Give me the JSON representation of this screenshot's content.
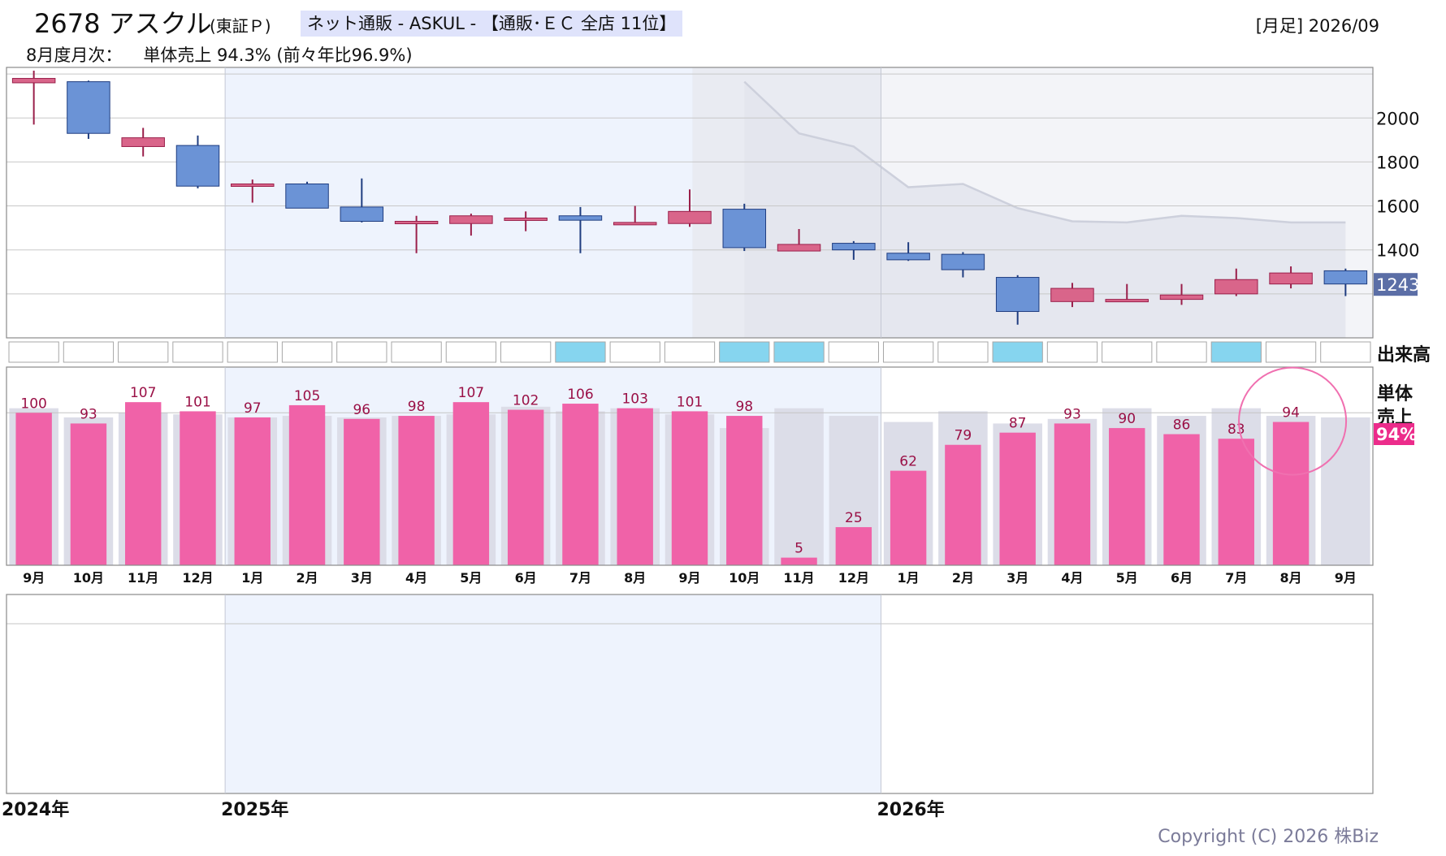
{
  "header": {
    "ticker": "2678 アスクル",
    "market": "(東証Ｐ)",
    "sector": "ネット通販 - ASKUL - 【通販･ＥＣ 全店 11位】",
    "period": "[月足] 2026/09",
    "monthly_label": "8月度月次：",
    "monthly_value": "単体売上 94.3% (前々年比96.9%)"
  },
  "footer": {
    "copyright": "Copyright (C) 2026 株Biz"
  },
  "colors": {
    "up_candle": "#d9658a",
    "down_candle": "#6b93d6",
    "up_wick": "#9a1f4a",
    "down_wick": "#1f3d80",
    "sales_bar": "#f062a8",
    "sales_label": "#9a1046",
    "comparison_bar": "#dcdde8",
    "highlight_band": "#eef3fd",
    "volume_highlight": "#86d5ef",
    "price_badge": "#5b6ea6",
    "sales_badge": "#ec2c8b",
    "circle": "#f070b0"
  },
  "chart_data": [
    {
      "type": "candlestick",
      "title": "",
      "x": [
        "2024-09",
        "2024-10",
        "2024-11",
        "2024-12",
        "2025-01",
        "2025-02",
        "2025-03",
        "2025-04",
        "2025-05",
        "2025-06",
        "2025-07",
        "2025-08",
        "2025-09",
        "2025-10",
        "2025-11",
        "2025-12",
        "2026-01",
        "2026-02",
        "2026-03",
        "2026-04",
        "2026-05",
        "2026-06",
        "2026-07",
        "2026-08",
        "2026-09"
      ],
      "open": [
        2160,
        2165,
        1870,
        1875,
        1695,
        1700,
        1595,
        1530,
        1520,
        1535,
        1555,
        1525,
        1520,
        1585,
        1395,
        1430,
        1385,
        1380,
        1275,
        1165,
        1175,
        1175,
        1200,
        1245,
        1305
      ],
      "close": [
        2180,
        1930,
        1910,
        1690,
        1700,
        1590,
        1530,
        1530,
        1555,
        1545,
        1535,
        1525,
        1575,
        1410,
        1425,
        1400,
        1355,
        1310,
        1120,
        1225,
        1175,
        1195,
        1265,
        1295,
        1245
      ],
      "high": [
        2215,
        2170,
        1955,
        1920,
        1720,
        1710,
        1725,
        1555,
        1565,
        1575,
        1595,
        1600,
        1675,
        1610,
        1495,
        1440,
        1435,
        1390,
        1285,
        1250,
        1245,
        1245,
        1315,
        1325,
        1315
      ],
      "low": [
        1970,
        1905,
        1825,
        1680,
        1615,
        1590,
        1525,
        1385,
        1465,
        1485,
        1385,
        1515,
        1505,
        1395,
        1395,
        1355,
        1350,
        1275,
        1060,
        1140,
        1165,
        1150,
        1190,
        1225,
        1190
      ],
      "moving_average": {
        "start_index": 13,
        "values": [
          2165,
          1930,
          1870,
          1685,
          1700,
          1590,
          1530,
          1525,
          1555,
          1545,
          1525,
          1525
        ]
      },
      "y_ticks": [
        1400,
        1600,
        1800,
        2000
      ],
      "ylim": [
        1000,
        2230
      ],
      "last_price": "1243",
      "grid": true
    },
    {
      "type": "volume_indicator",
      "label": "出来高",
      "highlighted_indices": [
        10,
        13,
        14,
        18,
        22
      ]
    },
    {
      "type": "bar",
      "label_line1": "単体",
      "label_line2": "売上",
      "badge": "94%",
      "categories": [
        "9月",
        "10月",
        "11月",
        "12月",
        "1月",
        "2月",
        "3月",
        "4月",
        "5月",
        "6月",
        "7月",
        "8月",
        "9月",
        "10月",
        "11月",
        "12月",
        "1月",
        "2月",
        "3月",
        "4月",
        "5月",
        "6月",
        "7月",
        "8月",
        "9月"
      ],
      "values": [
        100,
        93,
        107,
        101,
        97,
        105,
        96,
        98,
        107,
        102,
        106,
        103,
        101,
        98,
        5,
        25,
        62,
        79,
        87,
        93,
        90,
        86,
        83,
        94,
        null
      ],
      "comparison_values": [
        103,
        97,
        100,
        99,
        97,
        98,
        97,
        98,
        99,
        104,
        101,
        103,
        99,
        90,
        103,
        98,
        94,
        101,
        93,
        96,
        103,
        98,
        103,
        98,
        97
      ],
      "ylim": [
        0,
        130
      ],
      "circled_index": 23
    }
  ],
  "year_labels": [
    {
      "label": "2024年",
      "index": -0.55
    },
    {
      "label": "2025年",
      "index": 3.5
    },
    {
      "label": "2026年",
      "index": 15.5
    }
  ],
  "highlight_range": [
    3.5,
    15.5
  ],
  "shade_range": [
    12.05,
    15.5
  ]
}
